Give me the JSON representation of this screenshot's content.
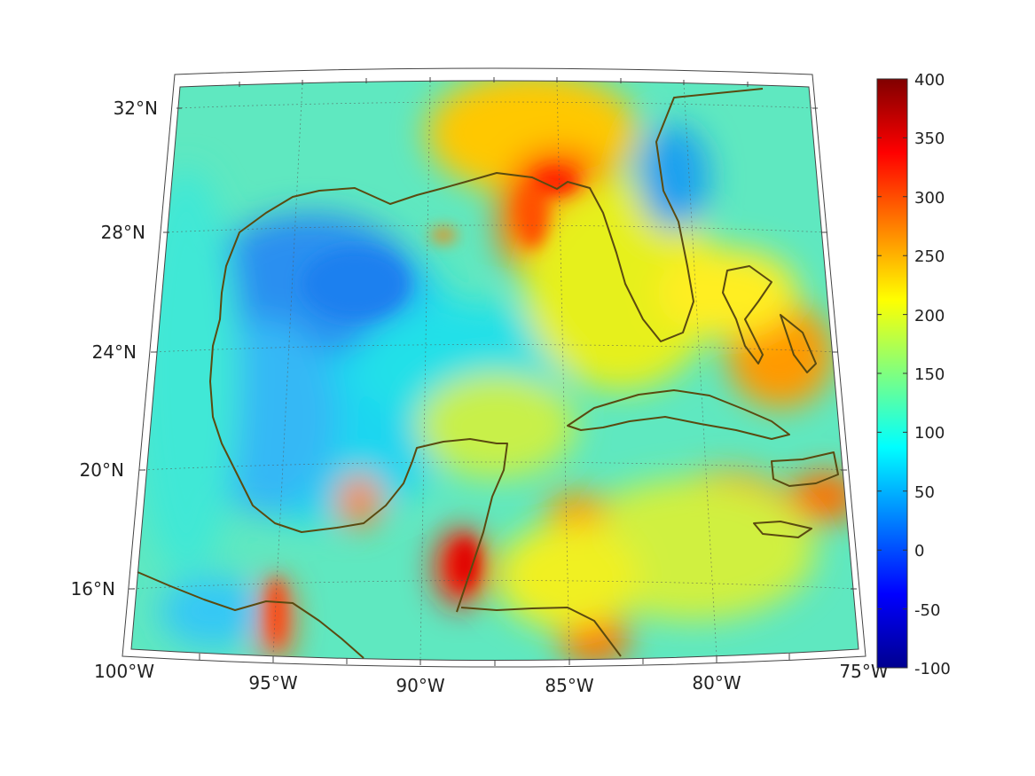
{
  "map": {
    "lat_labels": [
      "32°N",
      "28°N",
      "24°N",
      "20°N",
      "16°N"
    ],
    "lon_labels": [
      "100°W",
      "95°W",
      "90°W",
      "85°W",
      "80°W",
      "75°W"
    ],
    "coastline_color": "#5a4a10",
    "grid_color": "#555555"
  },
  "colorbar": {
    "tick_labels": [
      "400",
      "350",
      "300",
      "250",
      "200",
      "150",
      "100",
      "50",
      "0",
      "-50",
      "-100"
    ],
    "range": [
      -100,
      400
    ],
    "colormap": "jet",
    "colors": [
      "#00008f",
      "#0000ff",
      "#00ffff",
      "#ffff00",
      "#ff0000",
      "#800000"
    ]
  }
}
